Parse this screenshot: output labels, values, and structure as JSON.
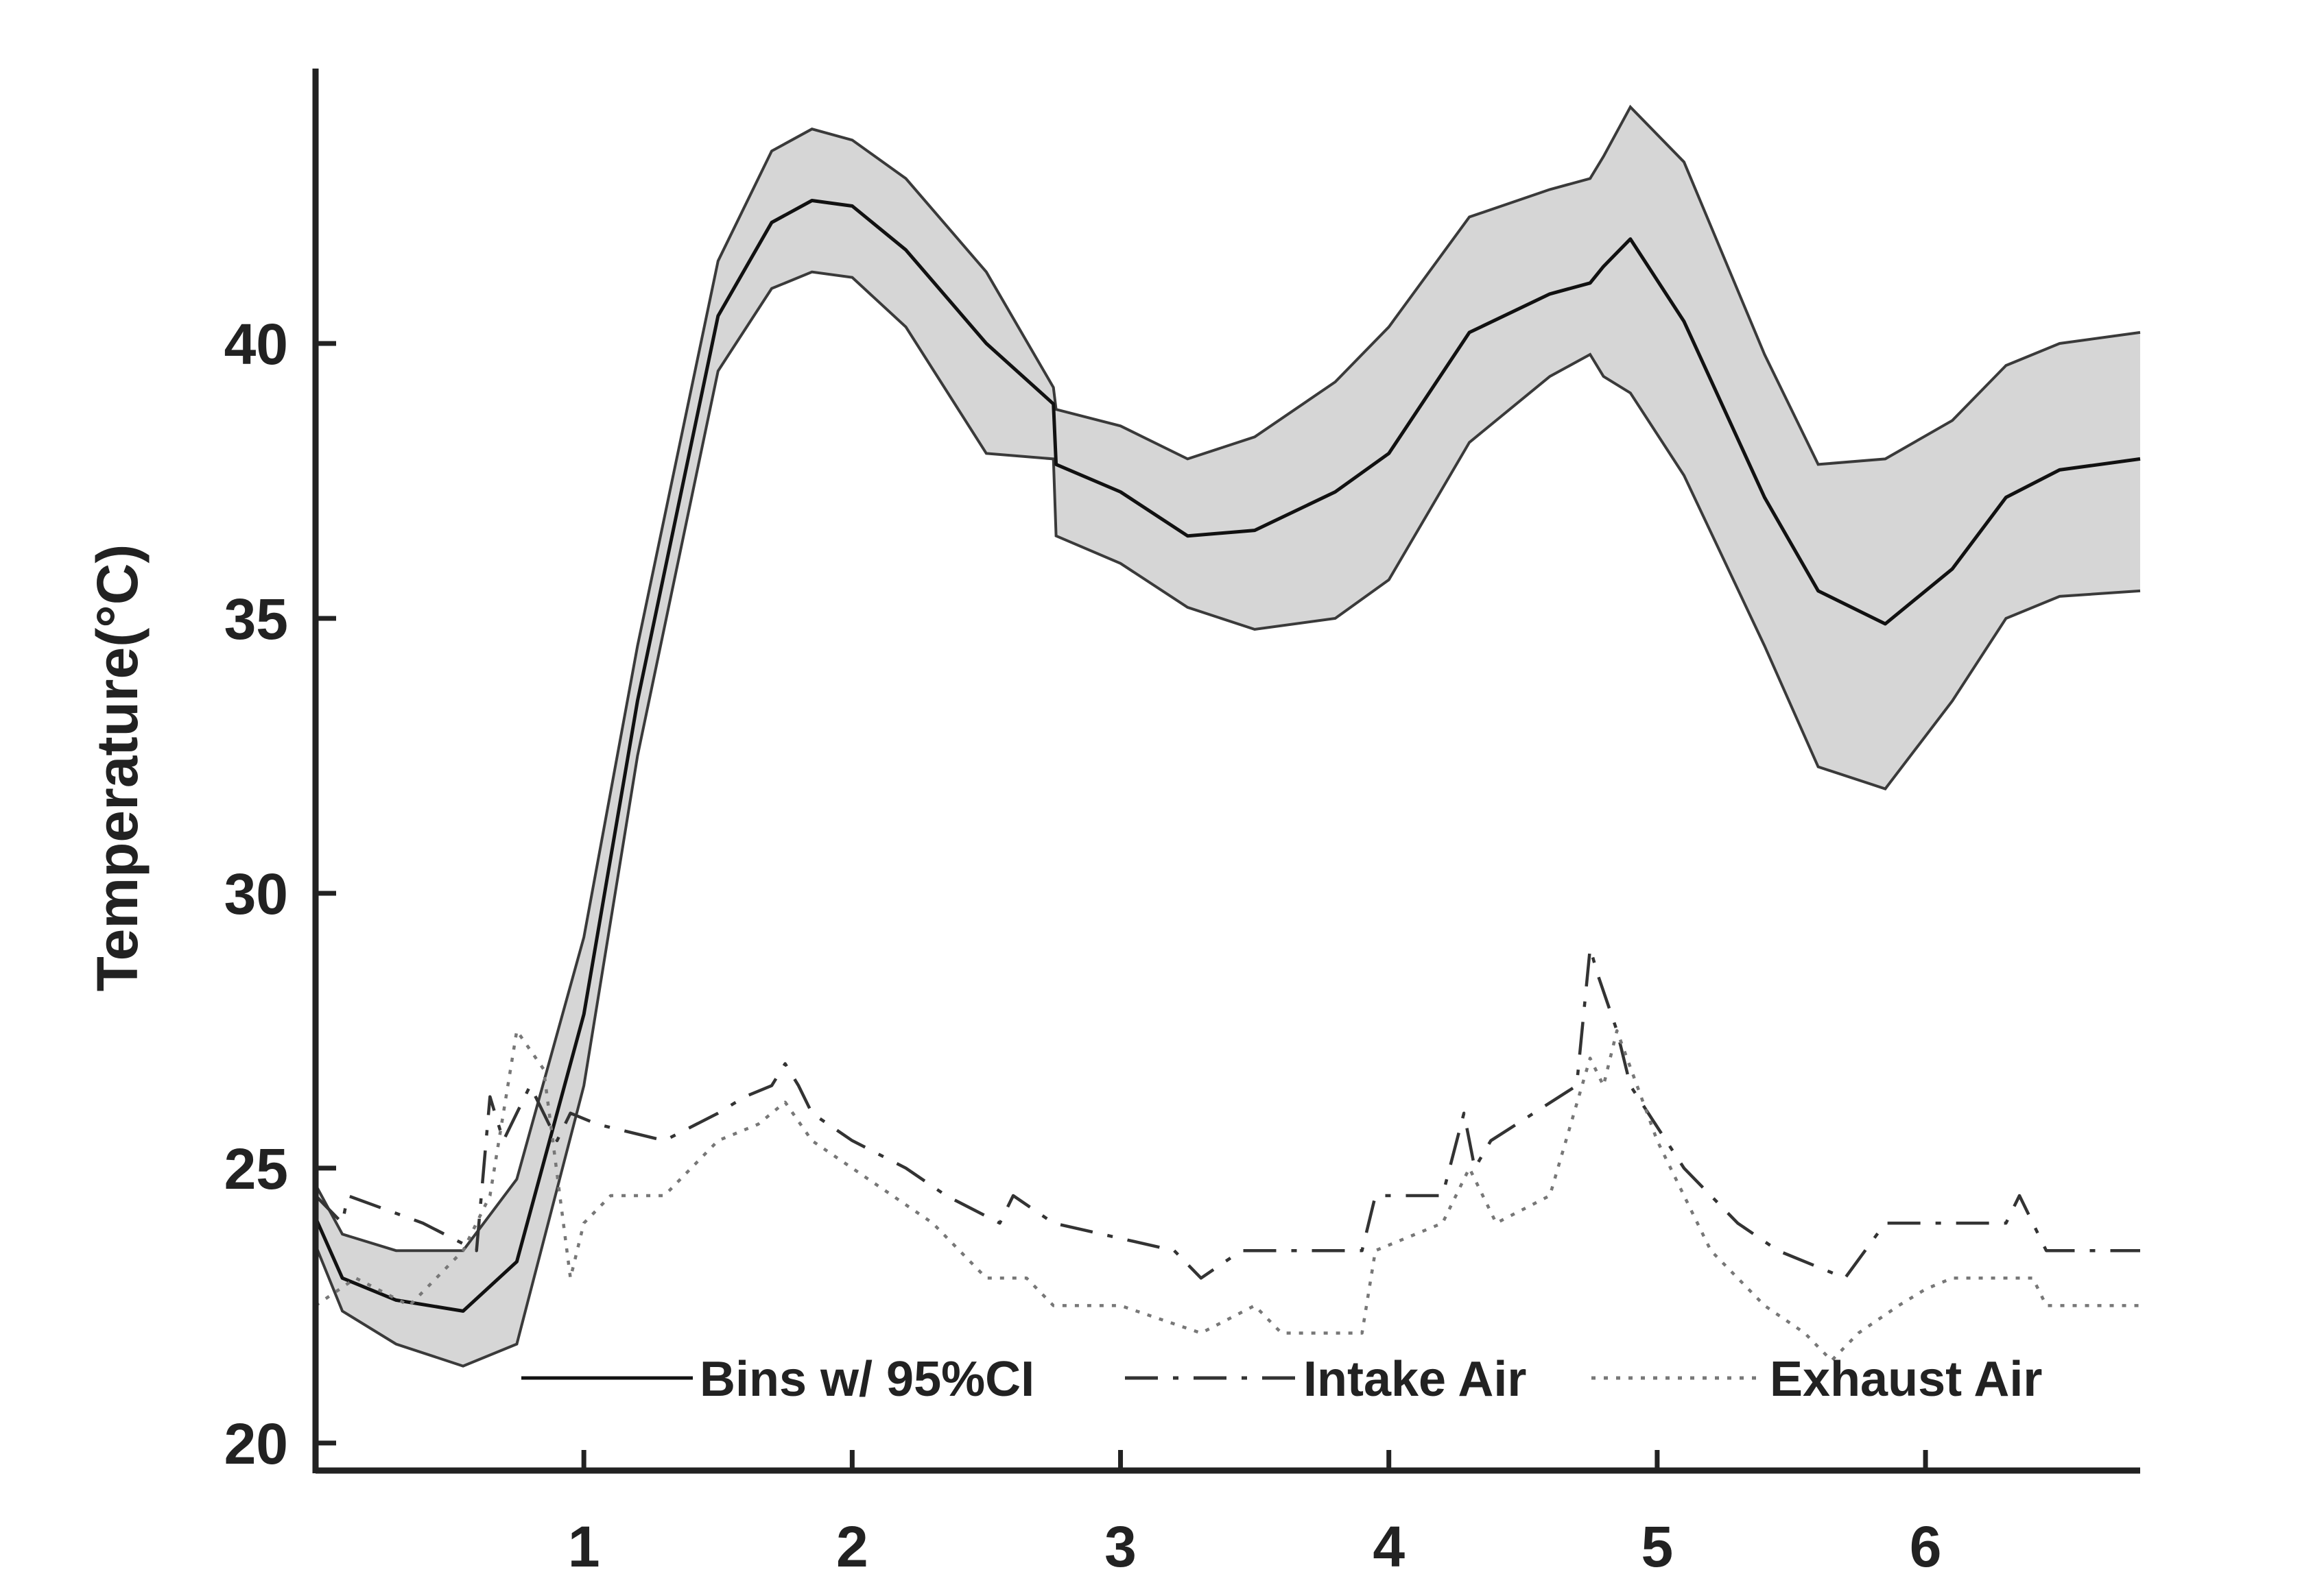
{
  "chart_data": {
    "type": "line",
    "title": "",
    "xlabel": "",
    "ylabel": "Temperature(°C)",
    "xlim": [
      0,
      6.8
    ],
    "ylim": [
      19.5,
      45
    ],
    "xticks": [
      1,
      2,
      3,
      4,
      5,
      6
    ],
    "yticks": [
      20,
      25,
      30,
      35,
      40
    ],
    "xtick_labels": [
      "1",
      "2",
      "3",
      "4",
      "5",
      "6"
    ],
    "ytick_labels": [
      "20",
      "25",
      "30",
      "35",
      "40"
    ],
    "grid": false,
    "legend_position": "bottom",
    "band": {
      "name": "95%CI",
      "x": [
        0.0,
        0.1,
        0.3,
        0.55,
        0.75,
        1.0,
        1.2,
        1.5,
        1.7,
        1.85,
        2.0,
        2.2,
        2.5,
        2.75,
        2.76,
        3.0,
        3.25,
        3.5,
        3.8,
        4.0,
        4.3,
        4.6,
        4.75,
        4.8,
        4.9,
        5.1,
        5.4,
        5.6,
        5.85,
        6.1,
        6.3,
        6.5,
        6.8
      ],
      "upper": [
        24.7,
        23.8,
        23.5,
        23.5,
        24.8,
        29.2,
        34.5,
        41.5,
        43.5,
        43.9,
        43.7,
        43.0,
        41.3,
        39.2,
        38.8,
        38.5,
        37.9,
        38.3,
        39.3,
        40.3,
        42.3,
        42.8,
        43.0,
        43.4,
        44.3,
        43.3,
        39.8,
        37.8,
        37.9,
        38.6,
        39.6,
        40.0,
        40.2
      ],
      "lower": [
        23.6,
        22.4,
        21.8,
        21.4,
        21.8,
        26.5,
        32.5,
        39.5,
        41.0,
        41.3,
        41.2,
        40.3,
        38.0,
        37.9,
        36.5,
        36.0,
        35.2,
        34.8,
        35.0,
        35.7,
        38.2,
        39.4,
        39.8,
        39.4,
        39.1,
        37.6,
        34.5,
        32.3,
        31.9,
        33.5,
        35.0,
        35.4,
        35.5
      ]
    },
    "series": [
      {
        "name": "Bins w/ 95%CI",
        "style": "solid",
        "color": "#111111",
        "x": [
          0.0,
          0.1,
          0.3,
          0.55,
          0.75,
          1.0,
          1.2,
          1.5,
          1.7,
          1.85,
          2.0,
          2.2,
          2.5,
          2.75,
          2.76,
          3.0,
          3.25,
          3.5,
          3.8,
          4.0,
          4.3,
          4.6,
          4.75,
          4.8,
          4.9,
          5.1,
          5.4,
          5.6,
          5.85,
          6.1,
          6.3,
          6.5,
          6.8
        ],
        "y": [
          24.1,
          23.0,
          22.6,
          22.4,
          23.3,
          27.8,
          33.5,
          40.5,
          42.2,
          42.6,
          42.5,
          41.7,
          40.0,
          38.9,
          37.8,
          37.3,
          36.5,
          36.6,
          37.3,
          38.0,
          40.2,
          40.9,
          41.1,
          41.4,
          41.9,
          40.4,
          37.2,
          35.5,
          34.9,
          35.9,
          37.2,
          37.7,
          37.9
        ]
      },
      {
        "name": "Intake Air",
        "style": "dashdot",
        "color": "#333333",
        "x": [
          0.0,
          0.1,
          0.12,
          0.4,
          0.6,
          0.65,
          0.7,
          0.8,
          0.9,
          0.95,
          1.05,
          1.3,
          1.5,
          1.6,
          1.7,
          1.75,
          1.8,
          1.85,
          2.0,
          2.2,
          2.35,
          2.55,
          2.6,
          2.75,
          3.2,
          3.3,
          3.45,
          3.9,
          3.95,
          4.2,
          4.28,
          4.32,
          4.38,
          4.7,
          4.75,
          4.78,
          4.85,
          4.9,
          5.1,
          5.3,
          5.45,
          5.7,
          5.85,
          6.3,
          6.35,
          6.45,
          6.8
        ],
        "y": [
          24.5,
          24.0,
          24.5,
          24.0,
          23.5,
          26.3,
          25.5,
          26.5,
          25.5,
          26.0,
          25.8,
          25.5,
          26.0,
          26.3,
          26.5,
          26.9,
          26.5,
          26.0,
          25.5,
          25.0,
          24.5,
          24.0,
          24.5,
          24.0,
          23.5,
          23.0,
          23.5,
          23.5,
          24.5,
          24.5,
          26.0,
          25.0,
          25.5,
          26.5,
          29.0,
          28.5,
          27.5,
          26.5,
          25.0,
          24.0,
          23.5,
          23.0,
          24.0,
          24.0,
          24.5,
          23.5,
          23.5
        ]
      },
      {
        "name": "Exhaust Air",
        "style": "dotted",
        "color": "#777777",
        "x": [
          0.0,
          0.15,
          0.35,
          0.55,
          0.65,
          0.75,
          0.85,
          0.95,
          1.0,
          1.1,
          1.3,
          1.5,
          1.65,
          1.75,
          1.85,
          2.0,
          2.3,
          2.5,
          2.65,
          2.75,
          2.9,
          3.0,
          3.3,
          3.5,
          3.6,
          3.9,
          3.95,
          4.2,
          4.3,
          4.4,
          4.6,
          4.75,
          4.8,
          4.85,
          5.0,
          5.2,
          5.4,
          5.55,
          5.65,
          5.75,
          5.9,
          6.0,
          6.1,
          6.4,
          6.45,
          6.8
        ],
        "y": [
          22.5,
          23.0,
          22.5,
          23.5,
          24.5,
          27.5,
          26.8,
          23.0,
          24.0,
          24.5,
          24.5,
          25.5,
          25.8,
          26.2,
          25.5,
          25.0,
          24.0,
          23.0,
          23.0,
          22.5,
          22.5,
          22.5,
          22.0,
          22.5,
          22.0,
          22.0,
          23.5,
          24.0,
          25.0,
          24.0,
          24.5,
          27.0,
          26.5,
          27.5,
          25.5,
          23.5,
          22.5,
          22.0,
          21.5,
          22.0,
          22.5,
          22.8,
          23.0,
          23.0,
          22.5,
          22.5
        ]
      }
    ]
  },
  "colors": {
    "band_fill": "#d6d6d6",
    "band_edge": "#3a3a3a",
    "axis": "#222222"
  }
}
